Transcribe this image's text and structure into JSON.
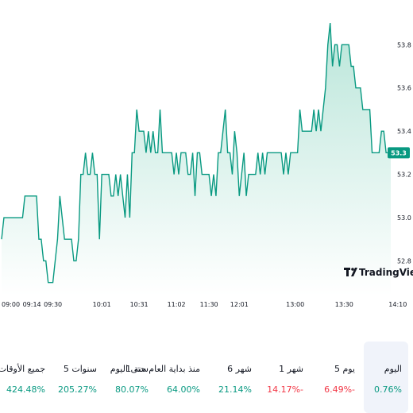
{
  "chart_data": {
    "type": "area",
    "series": [
      {
        "values": [
          52.9,
          53.0,
          53.0,
          53.0,
          53.0,
          53.0,
          53.0,
          53.0,
          53.0,
          53.0,
          53.1,
          53.1,
          53.1,
          53.1,
          53.1,
          53.1,
          52.9,
          52.9,
          52.8,
          52.8,
          52.7,
          52.7,
          52.7,
          52.8,
          52.9,
          53.1,
          53.0,
          52.9,
          52.9,
          52.9,
          52.9,
          52.8,
          52.8,
          52.9,
          53.2,
          53.2,
          53.3,
          53.2,
          53.2,
          53.3,
          53.2,
          53.2,
          52.9,
          53.2,
          53.2,
          53.2,
          53.2,
          53.1,
          53.1,
          53.2,
          53.1,
          53.2,
          53.1,
          53.0,
          53.2,
          53.0,
          53.3,
          53.3,
          53.5,
          53.4,
          53.4,
          53.4,
          53.3,
          53.4,
          53.3,
          53.4,
          53.3,
          53.3,
          53.5,
          53.3,
          53.3,
          53.3,
          53.3,
          53.3,
          53.2,
          53.3,
          53.2,
          53.3,
          53.3,
          53.3,
          53.2,
          53.2,
          53.3,
          53.1,
          53.3,
          53.3,
          53.2,
          53.2,
          53.2,
          53.2,
          53.1,
          53.2,
          53.1,
          53.3,
          53.3,
          53.4,
          53.5,
          53.3,
          53.3,
          53.2,
          53.4,
          53.3,
          53.1,
          53.2,
          53.3,
          53.1,
          53.2,
          53.2,
          53.2,
          53.2,
          53.3,
          53.2,
          53.3,
          53.2,
          53.3,
          53.3,
          53.3,
          53.3,
          53.3,
          53.3,
          53.3,
          53.2,
          53.3,
          53.2,
          53.3,
          53.3,
          53.3,
          53.3,
          53.5,
          53.4,
          53.4,
          53.4,
          53.4,
          53.4,
          53.5,
          53.4,
          53.5,
          53.4,
          53.5,
          53.6,
          53.8,
          53.9,
          53.7,
          53.8,
          53.8,
          53.7,
          53.8,
          53.8,
          53.8,
          53.8,
          53.7,
          53.7,
          53.6,
          53.6,
          53.6,
          53.5,
          53.5,
          53.5,
          53.5,
          53.3,
          53.3,
          53.3,
          53.3,
          53.4,
          53.4,
          53.3,
          53.3,
          53.3
        ]
      }
    ],
    "ylim": [
      52.64,
      53.97
    ],
    "y_ticks": [
      "53.8",
      "53.6",
      "53.4",
      "53.2",
      "53.0",
      "52.8"
    ],
    "y_tick_values": [
      53.8,
      53.6,
      53.4,
      53.2,
      53.0,
      52.8
    ],
    "x_ticks": [
      "09:00",
      "09:14",
      "09:30",
      "10:01",
      "10:31",
      "11:02",
      "11:30",
      "12:01",
      "13:00",
      "13:30",
      "14:10"
    ],
    "x_tick_index": [
      0,
      13,
      22,
      43,
      59,
      75,
      89,
      102,
      126,
      147,
      170
    ],
    "last_value_label": "53.3",
    "last_value": 53.3,
    "watermark": "TradingView",
    "line_color": "#089981",
    "fill_top_color": "#b5e4d7",
    "grid": false
  },
  "performance": [
    {
      "label": "جميع الأوقات",
      "value": "424.48%",
      "tone": "pos"
    },
    {
      "label": "5 سنوات",
      "value": "205.27%",
      "tone": "pos"
    },
    {
      "label": "1 سنة",
      "value": "80.07%",
      "tone": "pos"
    },
    {
      "label": "منذ بداية العام حتى اليوم",
      "value": "64.00%",
      "tone": "pos"
    },
    {
      "label": "6 شهر",
      "value": "21.14%",
      "tone": "pos"
    },
    {
      "label": "1 شهر",
      "value": "14.17%-",
      "tone": "neg"
    },
    {
      "label": "5 يوم",
      "value": "6.49%-",
      "tone": "neg"
    },
    {
      "label": "اليوم",
      "value": "0.76%",
      "tone": "pos",
      "active": true
    }
  ],
  "colors": {
    "positive": "#089981",
    "negative": "#f23645",
    "active_bg": "#f0f3fa"
  }
}
